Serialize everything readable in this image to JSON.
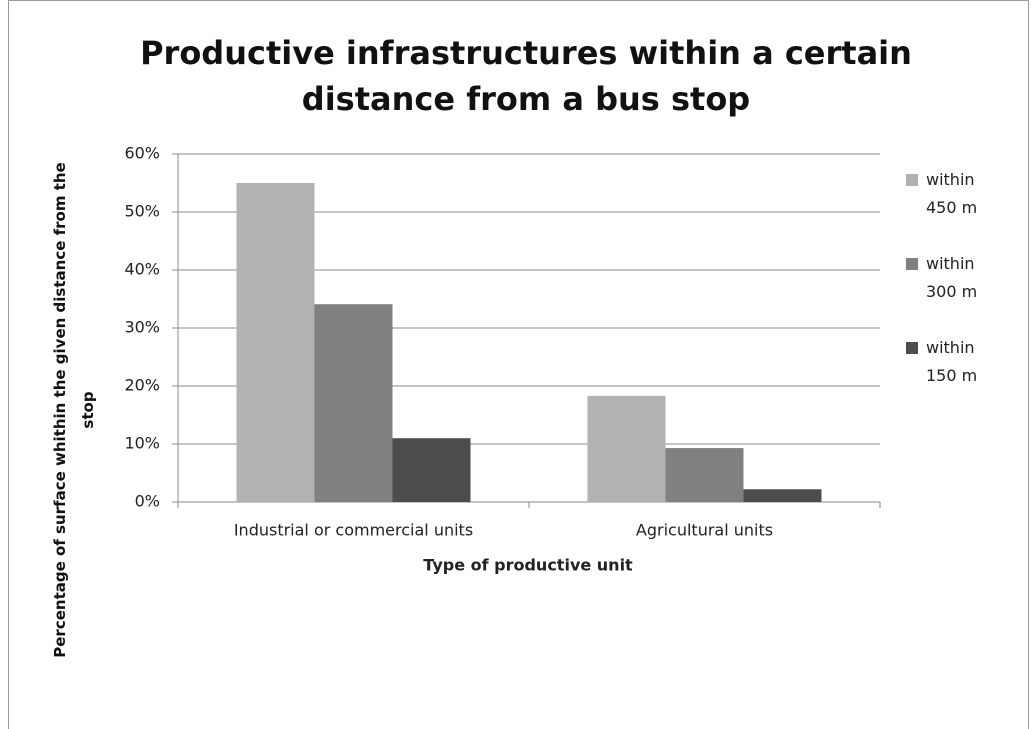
{
  "chart_data": {
    "type": "bar",
    "title": "Productive infrastructures within a certain distance from a bus stop",
    "x_label": "Type of productive unit",
    "y_label": "Percentage of surface whithin the given distance from the stop",
    "categories": [
      "Industrial or commercial units",
      "Agricultural units"
    ],
    "series": [
      {
        "name": "within 450 m",
        "color": "#b2b2b2",
        "values": [
          55,
          18.3
        ]
      },
      {
        "name": "within 300 m",
        "color": "#808080",
        "values": [
          34.1,
          9.3
        ]
      },
      {
        "name": "within 150 m",
        "color": "#4d4d4d",
        "values": [
          11,
          2.2
        ]
      }
    ],
    "ylim": [
      0,
      60
    ],
    "yticks": [
      {
        "value": 0,
        "label": "0%"
      },
      {
        "value": 10,
        "label": "10%"
      },
      {
        "value": 20,
        "label": "20%"
      },
      {
        "value": 30,
        "label": "30%"
      },
      {
        "value": 40,
        "label": "40%"
      },
      {
        "value": 50,
        "label": "50%"
      },
      {
        "value": 60,
        "label": "60%"
      }
    ],
    "grid": true,
    "legend": "right"
  }
}
